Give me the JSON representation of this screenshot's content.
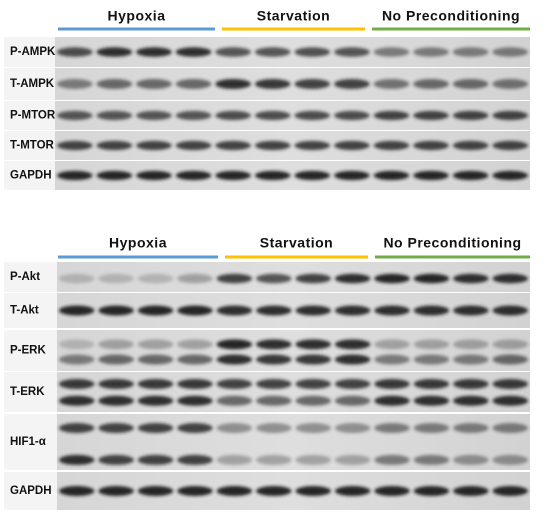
{
  "panels": [
    {
      "groups": [
        "Hypoxia",
        "Starvation",
        "No Preconditioning"
      ],
      "rows": [
        "P-AMPK",
        "T-AMPK",
        "P-MTOR",
        "T-MTOR",
        "GAPDH"
      ]
    },
    {
      "groups": [
        "Hypoxia",
        "Starvation",
        "No Preconditioning"
      ],
      "rows": [
        "P-Akt",
        "T-Akt",
        "P-ERK",
        "T-ERK",
        "HIF1-α",
        "GAPDH"
      ]
    }
  ]
}
